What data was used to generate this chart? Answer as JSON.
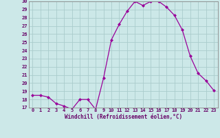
{
  "x": [
    0,
    1,
    2,
    3,
    4,
    5,
    6,
    7,
    8,
    9,
    10,
    11,
    12,
    13,
    14,
    15,
    16,
    17,
    18,
    19,
    20,
    21,
    22,
    23
  ],
  "y": [
    18.5,
    18.5,
    18.3,
    17.5,
    17.2,
    16.8,
    18.0,
    18.0,
    16.8,
    20.6,
    25.3,
    27.2,
    28.8,
    30.0,
    29.5,
    30.0,
    30.0,
    29.3,
    28.3,
    26.5,
    23.3,
    21.2,
    20.3,
    19.1
  ],
  "line_color": "#990099",
  "marker": "D",
  "marker_size": 2.0,
  "bg_color": "#cce8e8",
  "grid_color": "#aacccc",
  "xlabel": "Windchill (Refroidissement éolien,°C)",
  "ylim": [
    17,
    30
  ],
  "xlim_min": -0.5,
  "xlim_max": 23.5,
  "yticks": [
    17,
    18,
    19,
    20,
    21,
    22,
    23,
    24,
    25,
    26,
    27,
    28,
    29,
    30
  ],
  "xticks": [
    0,
    1,
    2,
    3,
    4,
    5,
    6,
    7,
    8,
    9,
    10,
    11,
    12,
    13,
    14,
    15,
    16,
    17,
    18,
    19,
    20,
    21,
    22,
    23
  ],
  "tick_color": "#660066",
  "label_color": "#660066",
  "spine_color": "#888888",
  "tick_fontsize": 5.0,
  "xlabel_fontsize": 5.5
}
